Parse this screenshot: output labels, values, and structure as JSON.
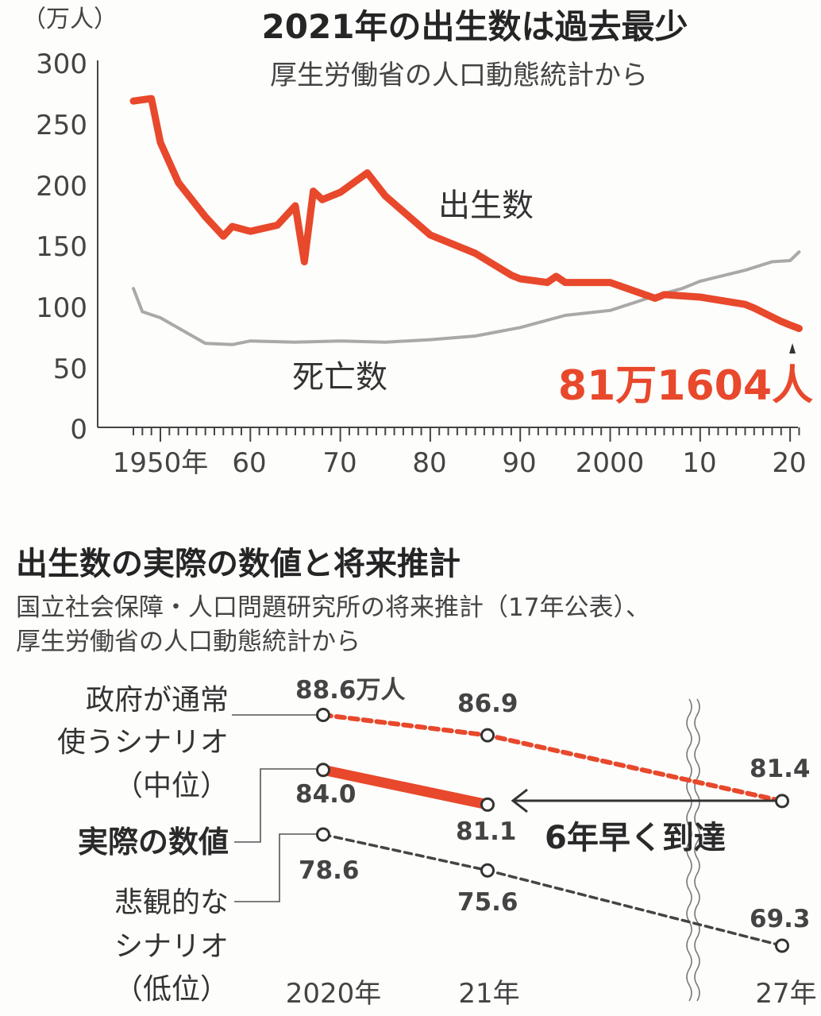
{
  "chart1": {
    "title": "2021年の出生数は過去最少",
    "subtitle": "厚生労働省の人口動態統計から",
    "unit_label": "（万人）",
    "y_ticks": [
      "300",
      "250",
      "200",
      "150",
      "100",
      "50",
      "0"
    ],
    "x_ticks": [
      "1950年",
      "60",
      "70",
      "80",
      "90",
      "2000",
      "10",
      "20"
    ],
    "births_label": "出生数",
    "deaths_label": "死亡数",
    "highlight_label": "81万1604人",
    "colors": {
      "births": "#e8482b",
      "deaths": "#a9a9a9",
      "highlight": "#e8482b"
    }
  },
  "chart2": {
    "title": "出生数の実際の数値と将来推計",
    "subtitle_1": "国立社会保障・人口問題研究所の将来推計（17年公表）、",
    "subtitle_2": "厚生労働省の人口動態統計から",
    "x_ticks": [
      "2020年",
      "21年",
      "27年"
    ],
    "series_labels": {
      "mid_1": "政府が通常",
      "mid_2": "使うシナリオ",
      "mid_3": "（中位）",
      "actual": "実際の数値",
      "low_1": "悲観的な",
      "low_2": "シナリオ",
      "low_3": "（低位）"
    },
    "value_labels": {
      "mid_2020": "88.6万人",
      "mid_2021": "86.9",
      "mid_2027": "81.4",
      "actual_2020": "84.0",
      "actual_2021": "81.1",
      "low_2020": "78.6",
      "low_2021": "75.6",
      "low_2027": "69.3"
    },
    "arrow_label": "6年早く到達",
    "colors": {
      "mid": "#e8482b",
      "actual": "#e8482b",
      "low": "#444444"
    }
  },
  "chart_data": [
    {
      "type": "line",
      "title": "2021年の出生数は過去最少",
      "subtitle": "厚生労働省の人口動態統計から",
      "ylabel": "（万人）",
      "xlabel": "",
      "ylim": [
        0,
        300
      ],
      "xlim": [
        1945,
        2023
      ],
      "grid": false,
      "series": [
        {
          "name": "出生数",
          "color": "#e8482b",
          "x": [
            1947,
            1949,
            1950,
            1952,
            1955,
            1957,
            1958,
            1960,
            1963,
            1965,
            1966,
            1967,
            1968,
            1970,
            1973,
            1975,
            1980,
            1985,
            1989,
            1990,
            1993,
            1994,
            1995,
            2000,
            2005,
            2006,
            2010,
            2015,
            2016,
            2019,
            2020,
            2021
          ],
          "y": [
            268,
            270,
            234,
            201,
            173,
            157,
            165,
            161,
            166,
            182,
            136,
            194,
            187,
            193,
            209,
            190,
            158,
            143,
            125,
            122,
            119,
            124,
            119,
            119,
            106,
            109,
            107,
            101,
            98,
            87,
            84,
            81.2
          ]
        },
        {
          "name": "死亡数",
          "color": "#a9a9a9",
          "x": [
            1947,
            1948,
            1950,
            1955,
            1958,
            1960,
            1965,
            1970,
            1975,
            1980,
            1985,
            1990,
            1995,
            2000,
            2005,
            2008,
            2010,
            2015,
            2018,
            2020,
            2021
          ],
          "y": [
            114,
            95,
            90,
            69,
            68,
            71,
            70,
            71,
            70,
            72,
            75,
            82,
            92,
            96,
            108,
            114,
            120,
            129,
            136,
            137,
            144
          ]
        }
      ],
      "annotations": [
        "81万1604人"
      ]
    },
    {
      "type": "line",
      "title": "出生数の実際の数値と将来推計",
      "categories": [
        "2020年",
        "21年",
        "27年"
      ],
      "series": [
        {
          "name": "政府が通常使うシナリオ（中位）",
          "values": [
            88.6,
            86.9,
            81.4
          ],
          "style": "dashed",
          "color": "#e8482b"
        },
        {
          "name": "実際の数値",
          "values": [
            84.0,
            81.1,
            null
          ],
          "style": "solid",
          "color": "#e8482b"
        },
        {
          "name": "悲観的なシナリオ（低位）",
          "values": [
            78.6,
            75.6,
            69.3
          ],
          "style": "dashed",
          "color": "#444444"
        }
      ],
      "annotations": [
        "6年早く到達"
      ]
    }
  ]
}
